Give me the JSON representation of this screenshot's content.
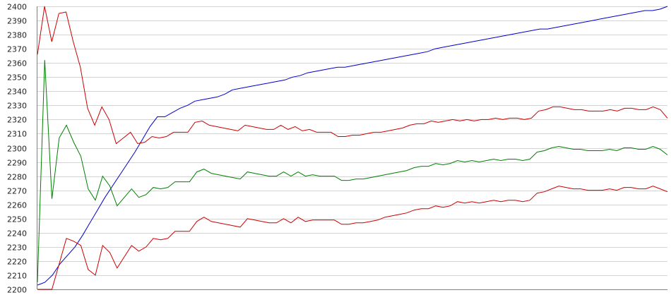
{
  "chart_data": {
    "type": "line",
    "title": "",
    "xlabel": "",
    "ylabel": "",
    "grid": true,
    "xlim": [
      0,
      99
    ],
    "ylim": [
      2200,
      2400
    ],
    "yticks": [
      2200,
      2210,
      2220,
      2230,
      2240,
      2250,
      2260,
      2270,
      2280,
      2290,
      2300,
      2310,
      2320,
      2330,
      2340,
      2350,
      2360,
      2370,
      2380,
      2390,
      2400
    ],
    "series": [
      {
        "color": "#0000cc",
        "values": [
          2203,
          2205,
          2210,
          2218,
          2224,
          2230,
          2238,
          2247,
          2256,
          2265,
          2273,
          2281,
          2289,
          2297,
          2306,
          2315,
          2322,
          2322,
          2325,
          2328,
          2330,
          2333,
          2334,
          2335,
          2336,
          2338,
          2341,
          2342,
          2343,
          2344,
          2345,
          2346,
          2347,
          2348,
          2350,
          2351,
          2353,
          2354,
          2355,
          2356,
          2357,
          2357,
          2358,
          2359,
          2360,
          2361,
          2362,
          2363,
          2364,
          2365,
          2366,
          2367,
          2368,
          2370,
          2371,
          2372,
          2373,
          2374,
          2375,
          2376,
          2377,
          2378,
          2379,
          2380,
          2381,
          2382,
          2383,
          2384,
          2384,
          2385,
          2386,
          2387,
          2388,
          2389,
          2390,
          2391,
          2392,
          2393,
          2394,
          2395,
          2396,
          2397,
          2397,
          2398,
          2400
        ]
      },
      {
        "color": "#cc0000",
        "values": [
          2366,
          2400,
          2375,
          2395,
          2396,
          2375,
          2357,
          2328,
          2316,
          2329,
          2320,
          2303,
          2307,
          2311,
          2303,
          2304,
          2308,
          2307,
          2308,
          2311,
          2311,
          2311,
          2318,
          2319,
          2316,
          2315,
          2314,
          2313,
          2312,
          2316,
          2315,
          2314,
          2313,
          2313,
          2316,
          2313,
          2315,
          2312,
          2313,
          2311,
          2311,
          2311,
          2308,
          2308,
          2309,
          2309,
          2310,
          2311,
          2311,
          2312,
          2313,
          2314,
          2316,
          2317,
          2317,
          2319,
          2318,
          2319,
          2320,
          2319,
          2320,
          2319,
          2320,
          2320,
          2321,
          2320,
          2321,
          2321,
          2320,
          2321,
          2326,
          2327,
          2329,
          2329,
          2328,
          2327,
          2327,
          2326,
          2326,
          2326,
          2327,
          2326,
          2328,
          2328,
          2327,
          2327,
          2329,
          2327,
          2321
        ]
      },
      {
        "color": "#008000",
        "values": [
          2205,
          2362,
          2264,
          2307,
          2316,
          2304,
          2294,
          2271,
          2263,
          2280,
          2273,
          2259,
          2265,
          2271,
          2265,
          2267,
          2272,
          2271,
          2272,
          2276,
          2276,
          2276,
          2283,
          2285,
          2282,
          2281,
          2280,
          2279,
          2278,
          2283,
          2282,
          2281,
          2280,
          2280,
          2283,
          2280,
          2283,
          2280,
          2281,
          2280,
          2280,
          2280,
          2277,
          2277,
          2278,
          2278,
          2279,
          2280,
          2281,
          2282,
          2283,
          2284,
          2286,
          2287,
          2287,
          2289,
          2288,
          2289,
          2291,
          2290,
          2291,
          2290,
          2291,
          2292,
          2291,
          2292,
          2292,
          2291,
          2292,
          2297,
          2298,
          2300,
          2301,
          2300,
          2299,
          2299,
          2298,
          2298,
          2298,
          2299,
          2298,
          2300,
          2300,
          2299,
          2299,
          2301,
          2299,
          2295
        ]
      },
      {
        "color": "#cc0000",
        "values": [
          2200,
          2200,
          2200,
          2218,
          2236,
          2234,
          2231,
          2214,
          2210,
          2231,
          2226,
          2215,
          2223,
          2231,
          2227,
          2230,
          2236,
          2235,
          2236,
          2241,
          2241,
          2241,
          2248,
          2251,
          2248,
          2247,
          2246,
          2245,
          2244,
          2250,
          2249,
          2248,
          2247,
          2247,
          2250,
          2247,
          2251,
          2248,
          2249,
          2249,
          2249,
          2249,
          2246,
          2246,
          2247,
          2247,
          2248,
          2249,
          2251,
          2252,
          2253,
          2254,
          2256,
          2257,
          2257,
          2259,
          2258,
          2259,
          2262,
          2261,
          2262,
          2261,
          2262,
          2263,
          2262,
          2263,
          2263,
          2262,
          2263,
          2268,
          2269,
          2271,
          2273,
          2272,
          2271,
          2271,
          2270,
          2270,
          2270,
          2271,
          2270,
          2272,
          2272,
          2271,
          2271,
          2273,
          2271,
          2269
        ]
      }
    ]
  }
}
